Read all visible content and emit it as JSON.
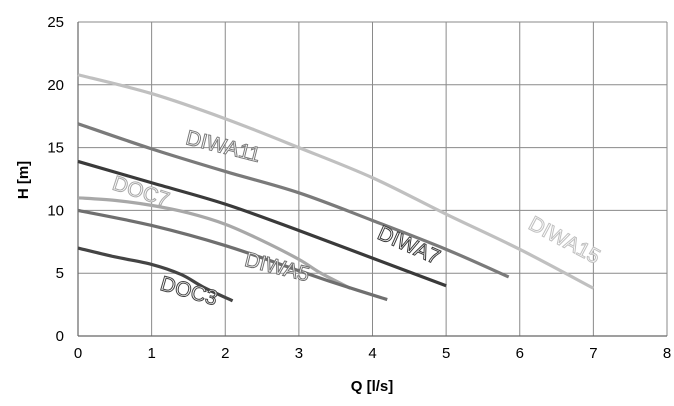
{
  "chart_data": {
    "type": "line",
    "title": "",
    "xlabel": "Q [l/s]",
    "ylabel": "H [m]",
    "xlim": [
      0,
      8
    ],
    "ylim": [
      0,
      25
    ],
    "x_ticks": [
      "0",
      "1",
      "2",
      "3",
      "4",
      "5",
      "6",
      "7",
      "8"
    ],
    "y_ticks": [
      "0",
      "5",
      "10",
      "15",
      "20",
      "25"
    ],
    "grid": true,
    "legend": "none",
    "series": [
      {
        "name": "DIWA15",
        "color": "#c0c0c0",
        "x": [
          0,
          1,
          2,
          3,
          4,
          5,
          6,
          7
        ],
        "y": [
          20.8,
          19.3,
          17.3,
          15.0,
          12.6,
          9.7,
          6.9,
          3.8
        ]
      },
      {
        "name": "DIWA11",
        "color": "#7a7a7a",
        "x": [
          0,
          1,
          2,
          3,
          4,
          5,
          5.85
        ],
        "y": [
          16.9,
          14.9,
          13.1,
          11.4,
          9.2,
          6.9,
          4.7
        ]
      },
      {
        "name": "DIWA7",
        "color": "#3a3a3a",
        "x": [
          0,
          1,
          2,
          3,
          4,
          5
        ],
        "y": [
          13.9,
          12.2,
          10.5,
          8.4,
          6.2,
          4.0
        ]
      },
      {
        "name": "DOC7",
        "color": "#a8a8a8",
        "x": [
          0,
          0.5,
          1,
          1.5,
          2,
          2.5,
          3,
          3.3,
          3.7
        ],
        "y": [
          11.0,
          10.8,
          10.4,
          9.8,
          8.9,
          7.6,
          6.1,
          5.0,
          3.8
        ]
      },
      {
        "name": "DIWA5",
        "color": "#6f6f6f",
        "x": [
          0,
          1,
          2,
          3,
          3.5,
          4.2
        ],
        "y": [
          10.0,
          8.8,
          7.2,
          5.2,
          4.2,
          2.9
        ]
      },
      {
        "name": "DOC3",
        "color": "#444444",
        "x": [
          0,
          0.5,
          1,
          1.4,
          1.7,
          2.1
        ],
        "y": [
          7.0,
          6.3,
          5.7,
          4.9,
          3.9,
          2.8
        ]
      }
    ],
    "labels": [
      {
        "text": "DIWA15",
        "x": 6.1,
        "y": 8.6,
        "angle": 28,
        "color": "#c0c0c0"
      },
      {
        "text": "DIWA11",
        "x": 1.45,
        "y": 15.3,
        "angle": 14,
        "color": "#7a7a7a"
      },
      {
        "text": "DIWA7",
        "x": 4.05,
        "y": 7.8,
        "angle": 24,
        "color": "#3a3a3a"
      },
      {
        "text": "DOC7",
        "x": 0.45,
        "y": 11.7,
        "angle": 18,
        "color": "#a8a8a8"
      },
      {
        "text": "DIWA5",
        "x": 2.25,
        "y": 5.6,
        "angle": 14,
        "color": "#6f6f6f"
      },
      {
        "text": "DOC3",
        "x": 1.1,
        "y": 3.7,
        "angle": 16,
        "color": "#444444"
      }
    ]
  }
}
